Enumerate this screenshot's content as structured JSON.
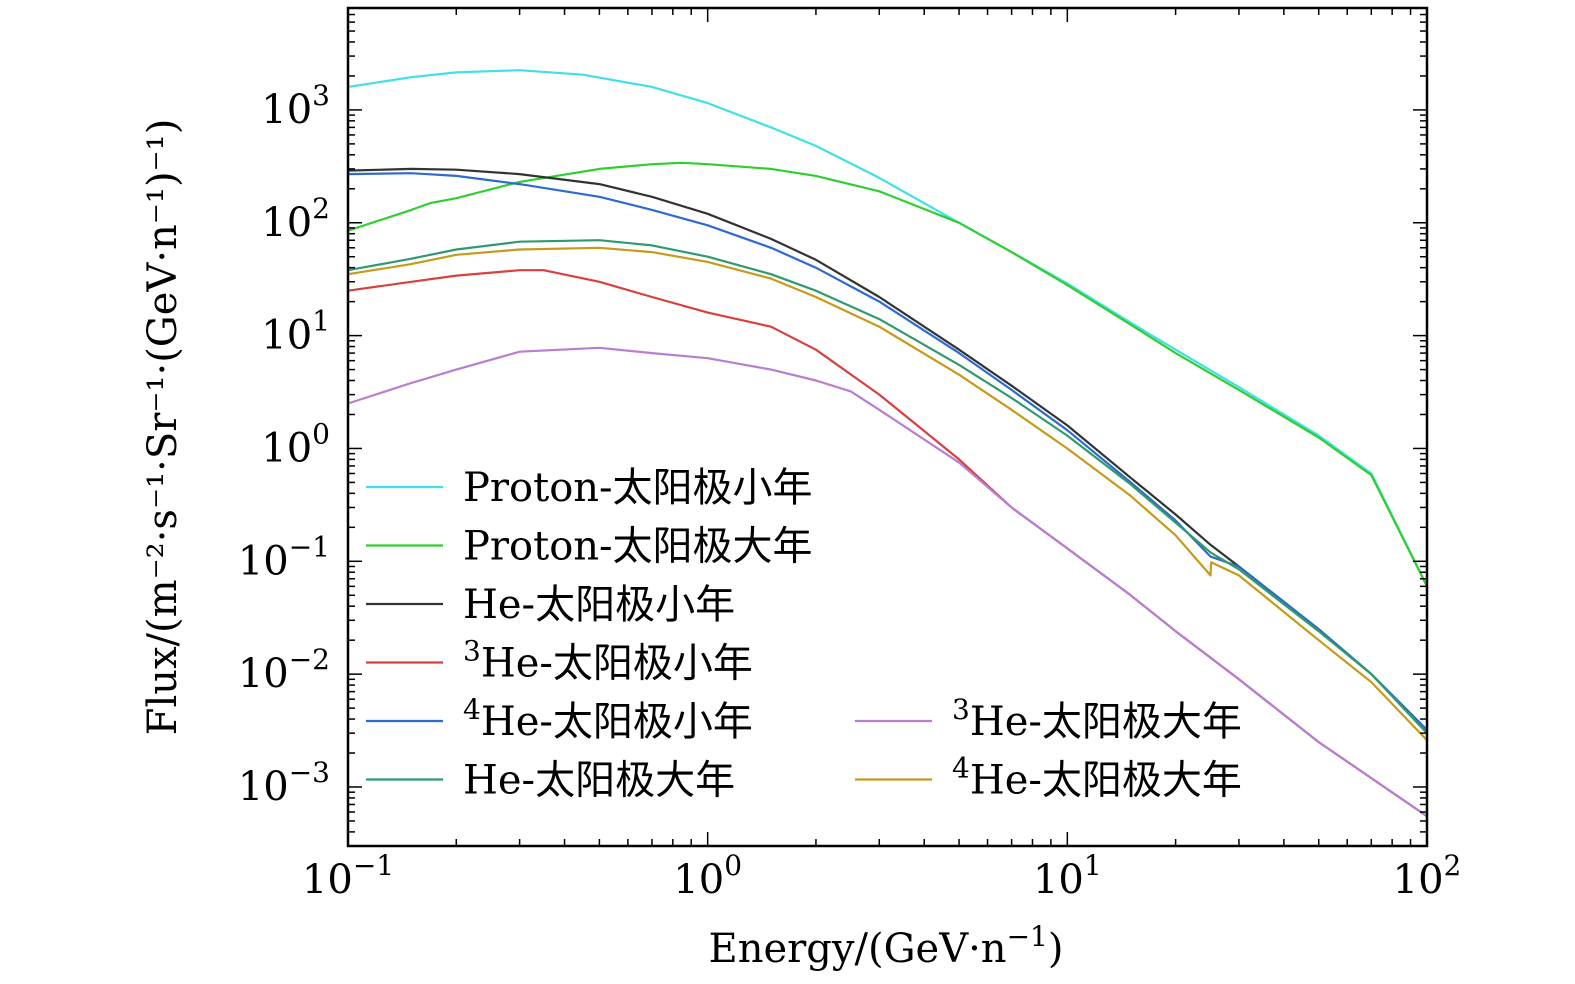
{
  "chart_data": {
    "type": "line",
    "xscale": "log",
    "yscale": "log",
    "xlim": [
      0.1,
      100
    ],
    "ylim": [
      0.0003,
      8000
    ],
    "xlabel": "Energy/(GeV·n",
    "xlabel_sup": "−1",
    "xlabel_tail": ")",
    "ylabel": "Flux/(m⁻²·s⁻¹·Sr⁻¹·(GeV·n⁻¹)⁻¹)",
    "grid": false,
    "legend_position": "bottom-left",
    "x_ticks": [
      {
        "value": 0.1,
        "base": "10",
        "exp": "−1"
      },
      {
        "value": 1,
        "base": "10",
        "exp": "0"
      },
      {
        "value": 10,
        "base": "10",
        "exp": "1"
      },
      {
        "value": 100,
        "base": "10",
        "exp": "2"
      }
    ],
    "y_ticks": [
      {
        "value": 0.001,
        "base": "10",
        "exp": "−3"
      },
      {
        "value": 0.01,
        "base": "10",
        "exp": "−2"
      },
      {
        "value": 0.1,
        "base": "10",
        "exp": "−1"
      },
      {
        "value": 1,
        "base": "10",
        "exp": "0"
      },
      {
        "value": 10,
        "base": "10",
        "exp": "1"
      },
      {
        "value": 100,
        "base": "10",
        "exp": "2"
      },
      {
        "value": 1000,
        "base": "10",
        "exp": "3"
      }
    ],
    "series": [
      {
        "name": "Proton-太阳极小年",
        "sup": "",
        "color": "#3fe0e8",
        "legend_col": 0,
        "legend_row": 0,
        "x": [
          0.1,
          0.15,
          0.2,
          0.3,
          0.45,
          0.7,
          1.0,
          1.5,
          2.0,
          3.0,
          5.0,
          7.0,
          10,
          15,
          20,
          30,
          50,
          70,
          100
        ],
        "y": [
          1600,
          1950,
          2150,
          2250,
          2050,
          1600,
          1150,
          700,
          480,
          250,
          100,
          55,
          29,
          13,
          7.5,
          3.5,
          1.3,
          0.6,
          0.06
        ]
      },
      {
        "name": "Proton-太阳极大年",
        "sup": "",
        "color": "#2fcf2f",
        "legend_col": 0,
        "legend_row": 1,
        "x": [
          0.1,
          0.15,
          0.17,
          0.2,
          0.3,
          0.5,
          0.7,
          0.85,
          1.0,
          1.5,
          2.0,
          3.0,
          5.0,
          7.0,
          10,
          15,
          20,
          30,
          50,
          70,
          100
        ],
        "y": [
          85,
          130,
          150,
          165,
          230,
          300,
          330,
          340,
          330,
          300,
          260,
          190,
          100,
          55,
          28,
          12.5,
          7,
          3.3,
          1.25,
          0.58,
          0.06
        ]
      },
      {
        "name": "He-太阳极小年",
        "sup": "",
        "color": "#333333",
        "legend_col": 0,
        "legend_row": 2,
        "x": [
          0.1,
          0.15,
          0.2,
          0.3,
          0.5,
          0.7,
          1.0,
          1.5,
          2.0,
          3.0,
          5.0,
          7.0,
          10,
          15,
          20,
          25,
          30,
          50,
          70,
          100
        ],
        "y": [
          290,
          300,
          295,
          270,
          220,
          170,
          120,
          72,
          47,
          22,
          7.5,
          3.6,
          1.6,
          0.55,
          0.26,
          0.14,
          0.09,
          0.025,
          0.01,
          0.0032
        ]
      },
      {
        "name": "He-太阳极小年",
        "sup": "3",
        "color": "#d84040",
        "legend_col": 0,
        "legend_row": 3,
        "x": [
          0.1,
          0.15,
          0.2,
          0.3,
          0.35,
          0.5,
          0.7,
          1.0,
          1.5,
          2.0,
          3.0,
          5.0,
          7.0,
          10,
          15,
          20,
          30,
          50,
          70,
          100
        ],
        "y": [
          25,
          30,
          34,
          38,
          38,
          30,
          22,
          16,
          12,
          7.5,
          3.0,
          0.8,
          0.3,
          0.13,
          0.05,
          0.024,
          0.009,
          0.0025,
          0.0012,
          0.00055
        ]
      },
      {
        "name": "He-太阳极小年",
        "sup": "4",
        "color": "#2e6bd1",
        "legend_col": 0,
        "legend_row": 4,
        "x": [
          0.1,
          0.15,
          0.2,
          0.3,
          0.5,
          0.7,
          1.0,
          1.5,
          2.0,
          3.0,
          5.0,
          7.0,
          10,
          15,
          20,
          25,
          30,
          50,
          70,
          100
        ],
        "y": [
          270,
          275,
          260,
          220,
          170,
          130,
          95,
          60,
          40,
          20,
          7,
          3.3,
          1.45,
          0.5,
          0.23,
          0.11,
          0.09,
          0.025,
          0.01,
          0.0032
        ]
      },
      {
        "name": "He-太阳极大年",
        "sup": "",
        "color": "#2f9a6f",
        "legend_col": 0,
        "legend_row": 5,
        "x": [
          0.1,
          0.15,
          0.2,
          0.3,
          0.5,
          0.7,
          1.0,
          1.5,
          2.0,
          3.0,
          5.0,
          7.0,
          10,
          15,
          20,
          25,
          30,
          50,
          70,
          100
        ],
        "y": [
          38,
          48,
          58,
          68,
          70,
          63,
          50,
          35,
          25,
          14,
          5.5,
          2.8,
          1.3,
          0.48,
          0.22,
          0.12,
          0.085,
          0.024,
          0.01,
          0.003
        ]
      },
      {
        "name": "He-太阳极大年",
        "sup": "3",
        "color": "#b77ed1",
        "legend_col": 1,
        "legend_row": 4,
        "x": [
          0.1,
          0.15,
          0.2,
          0.3,
          0.5,
          0.7,
          1.0,
          1.5,
          2.0,
          2.5,
          3.0,
          5.0,
          7.0,
          10,
          15,
          20,
          30,
          50,
          70,
          100
        ],
        "y": [
          2.5,
          3.8,
          5.0,
          7.2,
          7.8,
          7.0,
          6.3,
          5.0,
          4.0,
          3.2,
          2.2,
          0.75,
          0.3,
          0.13,
          0.05,
          0.024,
          0.009,
          0.0025,
          0.0012,
          0.00055
        ]
      },
      {
        "name": "He-太阳极大年",
        "sup": "4",
        "color": "#c79a1a",
        "legend_col": 1,
        "legend_row": 5,
        "x": [
          0.1,
          0.15,
          0.2,
          0.3,
          0.5,
          0.7,
          1.0,
          1.5,
          2.0,
          3.0,
          5.0,
          7.0,
          10,
          15,
          20,
          25,
          25.1,
          30,
          50,
          70,
          100
        ],
        "y": [
          35,
          43,
          52,
          58,
          60,
          55,
          45,
          32,
          22,
          12,
          4.5,
          2.2,
          1.0,
          0.38,
          0.17,
          0.075,
          0.098,
          0.075,
          0.02,
          0.0085,
          0.0026
        ]
      }
    ]
  }
}
